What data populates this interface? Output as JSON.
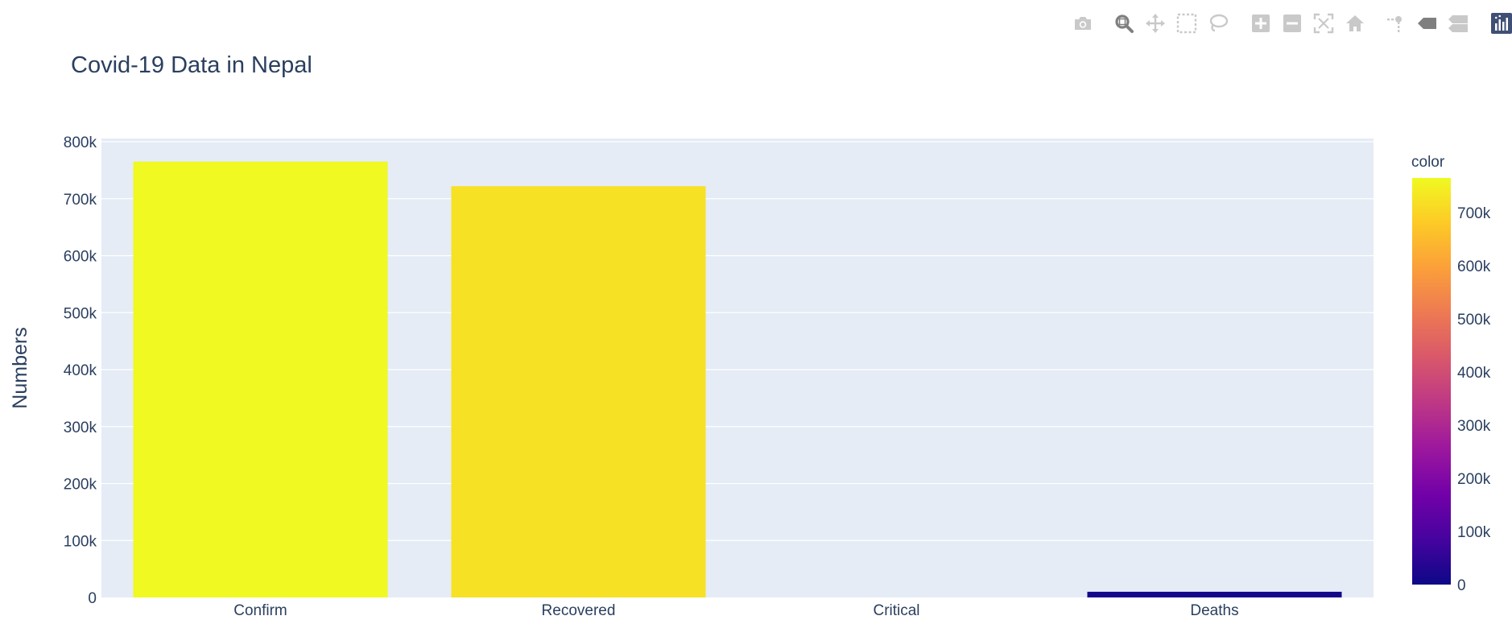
{
  "chart_data": {
    "type": "bar",
    "title": "Covid-19 Data in Nepal",
    "xlabel": "",
    "ylabel": "Numbers",
    "categories": [
      "Confirm",
      "Recovered",
      "Critical",
      "Deaths"
    ],
    "values": [
      765000,
      722000,
      0,
      10000
    ],
    "ylim": [
      0,
      800000
    ],
    "yticks": [
      0,
      100000,
      200000,
      300000,
      400000,
      500000,
      600000,
      700000,
      800000
    ],
    "ytick_labels": [
      "0",
      "100k",
      "200k",
      "300k",
      "400k",
      "500k",
      "600k",
      "700k",
      "800k"
    ],
    "grid": true,
    "colorbar": {
      "title": "color",
      "range": [
        0,
        765000
      ],
      "ticks": [
        0,
        100000,
        200000,
        300000,
        400000,
        500000,
        600000,
        700000
      ],
      "tick_labels": [
        "0",
        "100k",
        "200k",
        "300k",
        "400k",
        "500k",
        "600k",
        "700k"
      ],
      "colorscale": [
        "#0d0887",
        "#46039f",
        "#7201a8",
        "#9c179e",
        "#bd3786",
        "#d8576b",
        "#ed7953",
        "#fb9f3a",
        "#fdca26",
        "#f0f921"
      ]
    },
    "plot_background": "#e5ecf6",
    "text_color": "#2a3f5f"
  },
  "modebar": {
    "buttons": [
      {
        "icon": "camera-icon",
        "active": false
      },
      {
        "icon": "zoom-icon",
        "active": true
      },
      {
        "icon": "pan-icon",
        "active": false
      },
      {
        "icon": "box-select-icon",
        "active": false
      },
      {
        "icon": "lasso-select-icon",
        "active": false
      },
      {
        "icon": "zoom-in-icon",
        "active": false
      },
      {
        "icon": "zoom-out-icon",
        "active": false
      },
      {
        "icon": "autoscale-icon",
        "active": false
      },
      {
        "icon": "reset-axes-icon",
        "active": false
      },
      {
        "icon": "spike-lines-icon",
        "active": false
      },
      {
        "icon": "hover-closest-icon",
        "active": false
      },
      {
        "icon": "hover-compare-icon",
        "active": false
      },
      {
        "icon": "plotly-logo-icon",
        "active": false
      }
    ],
    "colors": {
      "inactive": "#c9c9c9",
      "active": "#7f7f7f",
      "logo": "#3f4f75"
    }
  }
}
